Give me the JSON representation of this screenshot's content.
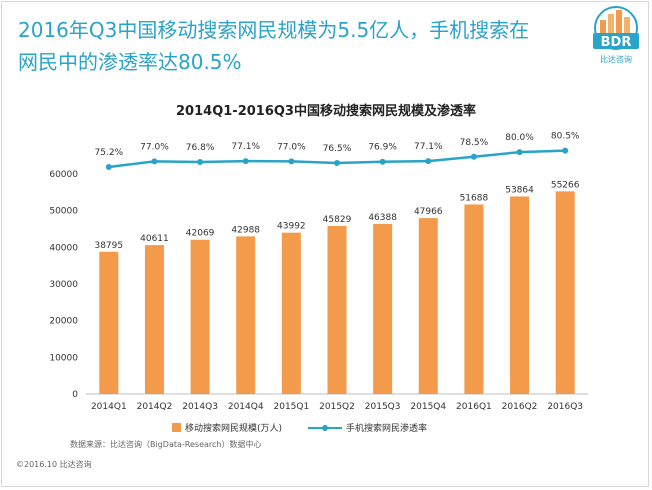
{
  "headline": {
    "line1": "2016年Q3中国移动搜索网民规模为5.5亿人，手机搜索在",
    "line2": "网民中的渗透率达80.5%"
  },
  "logo": {
    "text": "BDR",
    "subtext": "比达咨询",
    "color": "#2aa3c8"
  },
  "colors": {
    "bar": "#f39a4b",
    "line": "#2aa3c8",
    "axis": "#bfbfbf"
  },
  "chart_data": {
    "type": "bar",
    "title": "2014Q1-2016Q3中国移动搜索网民规模及渗透率",
    "categories": [
      "2014Q1",
      "2014Q2",
      "2014Q3",
      "2014Q4",
      "2015Q1",
      "2015Q2",
      "2015Q3",
      "2015Q4",
      "2016Q1",
      "2016Q2",
      "2016Q3"
    ],
    "series": [
      {
        "name": "移动搜索网民规模(万人)",
        "kind": "bar",
        "values": [
          38795,
          40611,
          42069,
          42988,
          43992,
          45829,
          46388,
          47966,
          51688,
          53864,
          55266
        ]
      },
      {
        "name": "手机搜索网民渗透率",
        "kind": "line",
        "values": [
          75.2,
          77.0,
          76.8,
          77.1,
          77.0,
          76.5,
          76.9,
          77.1,
          78.5,
          80.0,
          80.5
        ],
        "labels": [
          "75.2%",
          "77.0%",
          "76.8%",
          "77.1%",
          "77.0%",
          "76.5%",
          "76.9%",
          "77.1%",
          "78.5%",
          "80.0%",
          "80.5%"
        ]
      }
    ],
    "yticks": [
      "0",
      "10000",
      "20000",
      "30000",
      "40000",
      "50000",
      "60000"
    ],
    "ylim": [
      0,
      60000
    ],
    "grid": false,
    "legend": "bottom"
  },
  "source": "数据来源：比达咨询（BigData-Research）数据中心",
  "copyright": "©2016.10  比达咨询"
}
